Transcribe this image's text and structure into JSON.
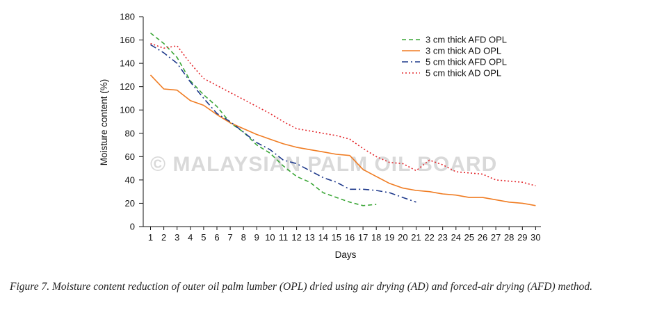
{
  "watermark": "© MALAYSIAN PALM OIL BOARD",
  "caption": "Figure 7. Moisture content reduction of outer oil palm lumber (OPL) dried using air drying (AD) and forced-air drying (AFD) method.",
  "chart_data": {
    "type": "line",
    "xlabel": "Days",
    "ylabel": "Moisture content (%)",
    "xlim": [
      1,
      30
    ],
    "ylim": [
      0,
      180
    ],
    "yticks": [
      0,
      20,
      40,
      60,
      80,
      100,
      120,
      140,
      160,
      180
    ],
    "xticks": [
      1,
      2,
      3,
      4,
      5,
      6,
      7,
      8,
      9,
      10,
      11,
      12,
      13,
      14,
      15,
      16,
      17,
      18,
      19,
      20,
      21,
      22,
      23,
      24,
      25,
      26,
      27,
      28,
      29,
      30
    ],
    "grid": false,
    "legend_position": "top-right",
    "series": [
      {
        "name": "3 cm thick AFD OPL",
        "color": "#3aa636",
        "style": "dashed",
        "x": [
          1,
          2,
          3,
          4,
          5,
          6,
          7,
          8,
          9,
          10,
          11,
          12,
          13,
          14,
          15,
          16,
          17,
          18
        ],
        "y": [
          166,
          157,
          145,
          125,
          113,
          103,
          89,
          81,
          70,
          63,
          52,
          43,
          38,
          29,
          25,
          21,
          18,
          19
        ]
      },
      {
        "name": "3 cm thick AD OPL",
        "color": "#f07c22",
        "style": "solid",
        "x": [
          1,
          2,
          3,
          4,
          5,
          6,
          7,
          8,
          9,
          10,
          11,
          12,
          13,
          14,
          15,
          16,
          17,
          18,
          19,
          20,
          21,
          22,
          23,
          24,
          25,
          26,
          27,
          28,
          29,
          30
        ],
        "y": [
          130,
          118,
          117,
          108,
          104,
          96,
          89,
          84,
          79,
          75,
          71,
          68,
          66,
          64,
          62,
          61,
          49,
          43,
          37,
          33,
          31,
          30,
          28,
          27,
          25,
          25,
          23,
          21,
          20,
          18
        ]
      },
      {
        "name": "5 cm thick AFD OPL",
        "color": "#1f3a8c",
        "style": "dashdot",
        "x": [
          1,
          2,
          3,
          4,
          5,
          6,
          7,
          8,
          9,
          10,
          11,
          12,
          13,
          14,
          15,
          16,
          17,
          18,
          19,
          20,
          21
        ],
        "y": [
          156,
          149,
          140,
          124,
          110,
          97,
          90,
          81,
          72,
          66,
          57,
          54,
          48,
          42,
          38,
          32,
          32,
          31,
          29,
          25,
          21
        ]
      },
      {
        "name": "5 cm thick AD OPL",
        "color": "#e3262b",
        "style": "dotted",
        "x": [
          1,
          2,
          3,
          4,
          5,
          6,
          7,
          8,
          9,
          10,
          11,
          12,
          13,
          14,
          15,
          16,
          17,
          18,
          19,
          20,
          21,
          22,
          23,
          24,
          25,
          26,
          27,
          28,
          29,
          30
        ],
        "y": [
          157,
          153,
          155,
          140,
          127,
          121,
          115,
          109,
          103,
          97,
          90,
          84,
          82,
          80,
          78,
          75,
          67,
          60,
          55,
          54,
          48,
          57,
          53,
          47,
          46,
          45,
          40,
          39,
          38,
          35
        ]
      }
    ]
  }
}
